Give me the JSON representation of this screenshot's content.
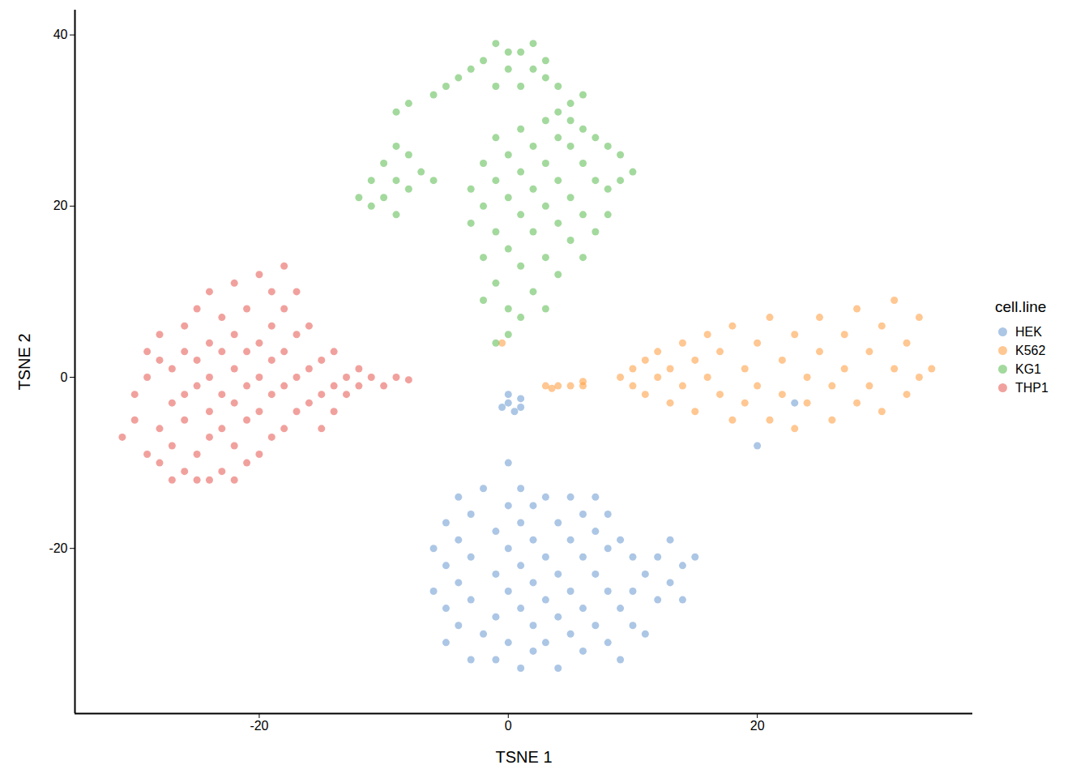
{
  "chart_data": {
    "type": "scatter",
    "x_label": "TSNE 1",
    "y_label": "TSNE 2",
    "legend_title": "cell.line",
    "legend": "right",
    "grid": false,
    "xlim": [
      -34.8,
      37.3
    ],
    "ylim": [
      -39.3,
      42.9
    ],
    "xticks": [
      -20,
      0,
      20
    ],
    "yticks": [
      -20,
      0,
      20,
      40
    ],
    "series": [
      {
        "name": "HEK",
        "color": "#74a0d4",
        "x": [
          0,
          0,
          0.5,
          1,
          -0.5,
          1,
          -5,
          -5,
          -5,
          -5,
          -4,
          -4,
          -4,
          -4,
          -3,
          -3,
          -3,
          -3,
          -2,
          -2,
          -1,
          -1,
          -1,
          -1,
          0,
          0,
          0,
          0,
          0,
          1,
          1,
          1,
          1,
          1,
          2,
          2,
          2,
          2,
          2,
          3,
          3,
          3,
          3,
          4,
          4,
          4,
          4,
          5,
          5,
          5,
          5,
          6,
          6,
          6,
          6,
          7,
          7,
          7,
          7,
          8,
          8,
          8,
          8,
          9,
          9,
          9,
          10,
          10,
          10,
          11,
          11,
          12,
          12,
          13,
          13,
          14,
          15,
          14,
          -6,
          -6,
          20,
          23
        ],
        "y": [
          -2,
          -3,
          -4,
          -2.5,
          -3.5,
          -3.5,
          -17,
          -22,
          -27,
          -31,
          -14,
          -19,
          -24,
          -29,
          -33,
          -16,
          -21,
          -26,
          -30,
          -13,
          -18,
          -23,
          -28,
          -33,
          -10,
          -15,
          -20,
          -25,
          -31,
          -13,
          -17,
          -22,
          -27,
          -34,
          -15,
          -19,
          -24,
          -29,
          -32,
          -14,
          -21,
          -26,
          -31,
          -17,
          -23,
          -28,
          -34,
          -14,
          -19,
          -25,
          -30,
          -16,
          -21,
          -27,
          -32,
          -14,
          -18,
          -23,
          -29,
          -16,
          -20,
          -25,
          -31,
          -19,
          -27,
          -33,
          -21,
          -25,
          -29,
          -23,
          -30,
          -21,
          -26,
          -19,
          -24,
          -22,
          -21,
          -26,
          -20,
          -25,
          -8,
          -3
        ]
      },
      {
        "name": "K562",
        "color": "#ffa24a",
        "x": [
          3,
          4,
          5,
          6,
          6,
          3.5,
          9,
          10,
          10,
          11,
          11,
          12,
          12,
          13,
          13,
          14,
          14,
          15,
          15,
          16,
          16,
          17,
          17,
          18,
          18,
          19,
          19,
          20,
          20,
          21,
          21,
          22,
          22,
          23,
          23,
          24,
          24,
          25,
          25,
          26,
          26,
          27,
          27,
          28,
          28,
          29,
          29,
          30,
          30,
          31,
          31,
          32,
          32,
          33,
          33,
          34,
          -0.5
        ],
        "y": [
          -1,
          -1,
          -1,
          -1,
          -0.5,
          -1.3,
          0,
          1,
          -1,
          2,
          -2,
          0,
          3,
          -3,
          1,
          4,
          -1,
          2,
          -4,
          0,
          5,
          -2,
          3,
          -5,
          6,
          1,
          -3,
          4,
          -1,
          7,
          -5,
          2,
          -2,
          5,
          -6,
          0,
          -3,
          7,
          3,
          -1,
          -5,
          5,
          1,
          8,
          -3,
          3,
          -1,
          6,
          -4,
          9,
          1,
          4,
          -2,
          7,
          0,
          1,
          4
        ]
      },
      {
        "name": "KG1",
        "color": "#66bf5c",
        "x": [
          -1,
          0,
          1,
          2,
          3,
          -2,
          -3,
          -4,
          -5,
          -6,
          -8,
          -9,
          0,
          2,
          3,
          1,
          -1,
          4,
          5,
          4,
          6,
          5,
          -12,
          -11,
          -10,
          -9,
          -10,
          -9,
          -8,
          -11,
          -9,
          -7,
          -8,
          -6,
          -3,
          -3,
          -2,
          -2,
          -2,
          -1,
          -1,
          -1,
          -1,
          0,
          0,
          0,
          0,
          0,
          1,
          1,
          1,
          1,
          1,
          2,
          2,
          2,
          2,
          3,
          3,
          3,
          3,
          4,
          4,
          4,
          4,
          5,
          5,
          5,
          6,
          6,
          6,
          6,
          7,
          7,
          7,
          8,
          8,
          8,
          9,
          9,
          10,
          -1,
          -2,
          3
        ],
        "y": [
          39,
          38,
          38,
          39,
          37,
          37,
          36,
          35,
          34,
          33,
          32,
          31,
          36,
          36,
          35,
          34,
          34,
          34,
          32,
          31,
          33,
          30,
          21,
          23,
          25,
          27,
          21,
          23,
          22,
          20,
          19,
          24,
          26,
          23,
          22,
          18,
          25,
          20,
          14,
          28,
          23,
          17,
          11,
          26,
          21,
          15,
          8,
          5,
          29,
          24,
          19,
          13,
          7,
          27,
          22,
          17,
          10,
          30,
          25,
          20,
          14,
          28,
          23,
          18,
          12,
          27,
          21,
          16,
          29,
          25,
          19,
          14,
          28,
          23,
          17,
          27,
          22,
          19,
          26,
          23,
          24,
          4,
          9,
          8
        ]
      },
      {
        "name": "THP1",
        "color": "#e8625b",
        "x": [
          -31,
          -30,
          -30,
          -29,
          -29,
          -28,
          -28,
          -28,
          -28,
          -27,
          -27,
          -27,
          -27,
          -26,
          -26,
          -26,
          -26,
          -25,
          -25,
          -25,
          -25,
          -25,
          -24,
          -24,
          -24,
          -24,
          -24,
          -23,
          -23,
          -23,
          -23,
          -23,
          -22,
          -22,
          -22,
          -22,
          -22,
          -22,
          -21,
          -21,
          -21,
          -21,
          -21,
          -20,
          -20,
          -20,
          -20,
          -20,
          -19,
          -19,
          -19,
          -19,
          -19,
          -18,
          -18,
          -18,
          -18,
          -18,
          -17,
          -17,
          -17,
          -17,
          -16,
          -16,
          -16,
          -15,
          -15,
          -15,
          -14,
          -14,
          -14,
          -13,
          -13,
          -12,
          -12,
          -11,
          -10,
          -9,
          -8,
          -29,
          -24,
          -26
        ],
        "y": [
          -7,
          -5,
          -2,
          3,
          0,
          -10,
          -6,
          5,
          2,
          -12,
          -8,
          -3,
          1,
          -11,
          -5,
          6,
          3,
          -9,
          -12,
          -1,
          2,
          8,
          -7,
          -4,
          0,
          4,
          10,
          -11,
          -6,
          -2,
          3,
          7,
          -12,
          -8,
          -3,
          1,
          5,
          11,
          -10,
          -5,
          -1,
          3,
          8,
          -9,
          -4,
          0,
          4,
          12,
          -7,
          -2,
          2,
          6,
          10,
          -6,
          -1,
          3,
          13,
          8,
          -4,
          0,
          5,
          10,
          -3,
          1,
          6,
          -2,
          2,
          -6,
          -1,
          3,
          -4,
          0,
          -2,
          -1,
          1,
          0,
          -1,
          0,
          -0.3,
          -9,
          -12,
          -2
        ]
      }
    ]
  }
}
